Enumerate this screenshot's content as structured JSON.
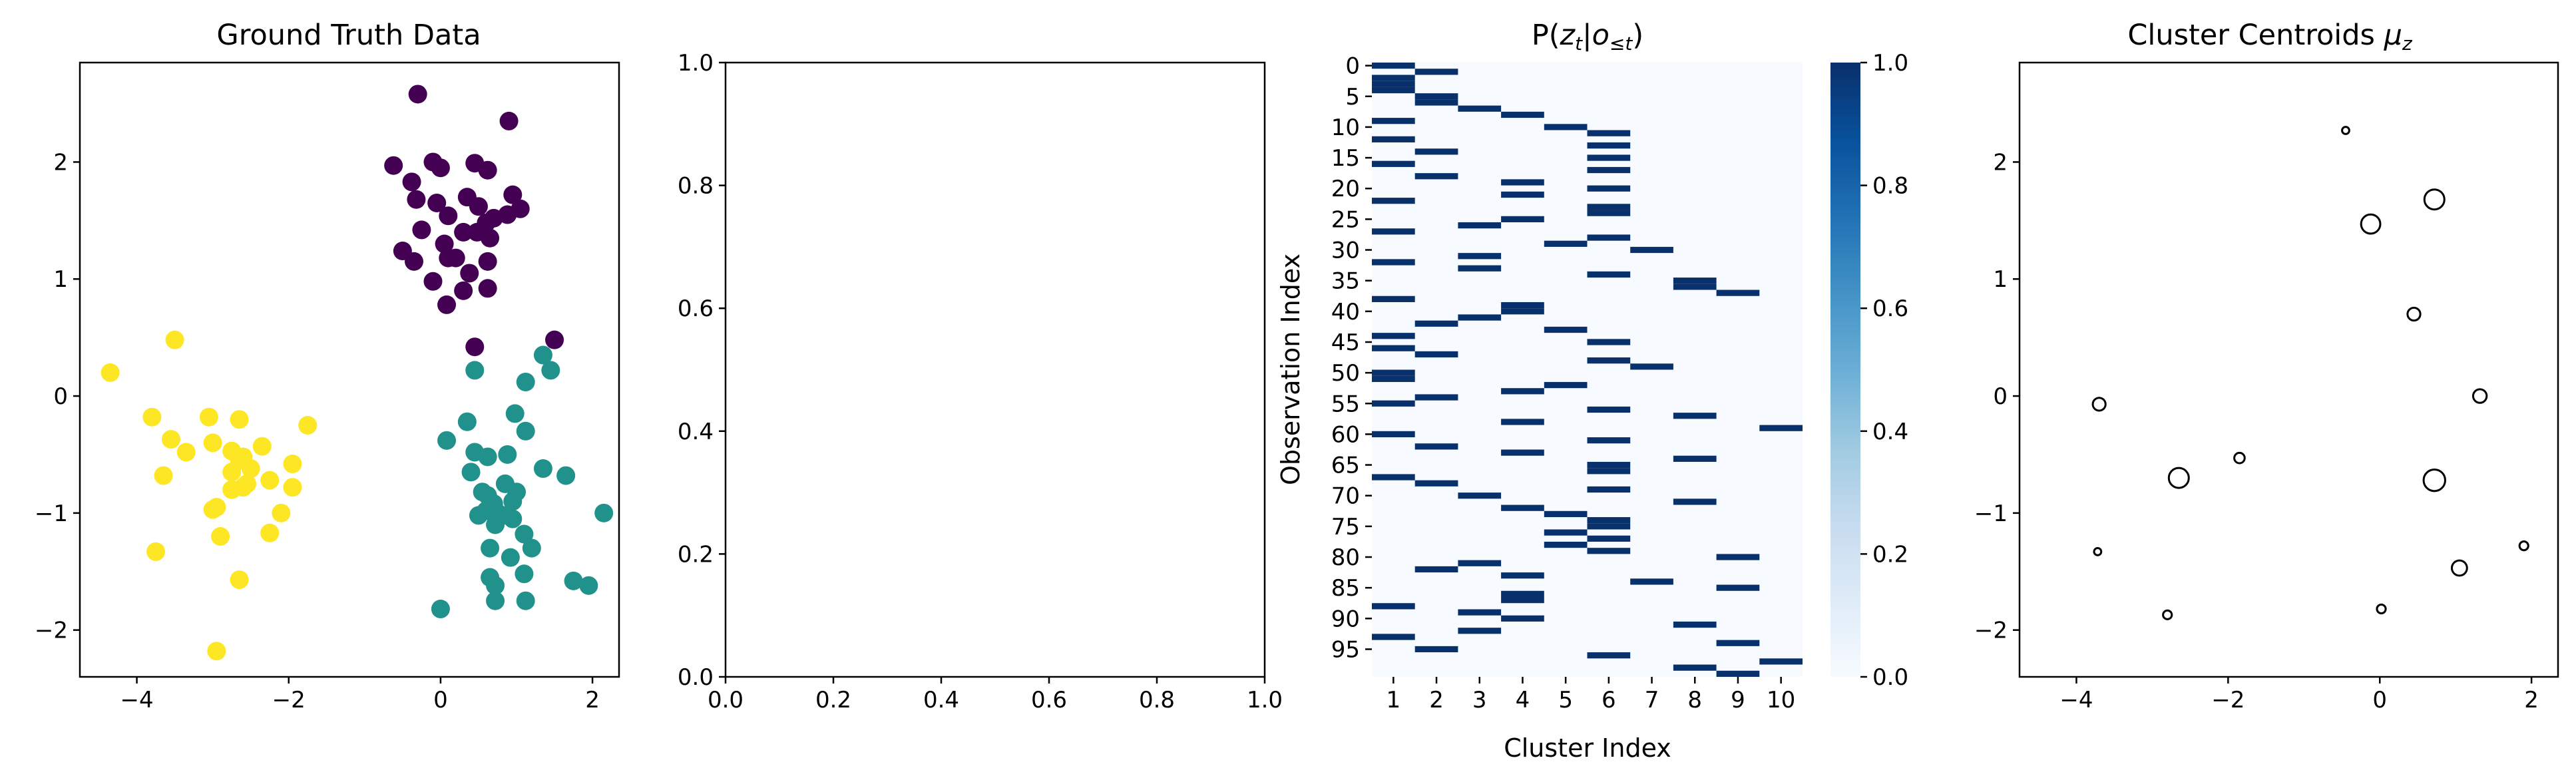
{
  "chart_data": [
    {
      "type": "scatter",
      "title": "Ground Truth Data",
      "xlim": [
        -4.75,
        2.35
      ],
      "ylim": [
        -2.4,
        2.85
      ],
      "xticks": [
        -4,
        -2,
        0,
        2
      ],
      "yticks": [
        -2,
        -1,
        0,
        1,
        2
      ],
      "xtick_labels": [
        "−4",
        "−2",
        "0",
        "2"
      ],
      "ytick_labels": [
        "−2",
        "−1",
        "0",
        "1",
        "2"
      ],
      "series": [
        {
          "color": "#440154",
          "points": [
            [
              -0.3,
              2.58
            ],
            [
              0.9,
              2.35
            ],
            [
              -0.62,
              1.97
            ],
            [
              -0.1,
              2.0
            ],
            [
              0.45,
              1.99
            ],
            [
              0.0,
              1.95
            ],
            [
              0.62,
              1.93
            ],
            [
              -0.38,
              1.83
            ],
            [
              0.95,
              1.72
            ],
            [
              0.35,
              1.7
            ],
            [
              -0.32,
              1.68
            ],
            [
              -0.05,
              1.65
            ],
            [
              0.5,
              1.62
            ],
            [
              1.05,
              1.6
            ],
            [
              0.88,
              1.55
            ],
            [
              0.1,
              1.54
            ],
            [
              0.7,
              1.52
            ],
            [
              0.6,
              1.48
            ],
            [
              -0.25,
              1.42
            ],
            [
              0.3,
              1.4
            ],
            [
              0.48,
              1.4
            ],
            [
              0.65,
              1.35
            ],
            [
              0.05,
              1.3
            ],
            [
              -0.5,
              1.24
            ],
            [
              0.1,
              1.18
            ],
            [
              0.2,
              1.18
            ],
            [
              -0.35,
              1.15
            ],
            [
              0.62,
              1.15
            ],
            [
              0.38,
              1.05
            ],
            [
              -0.1,
              0.98
            ],
            [
              0.62,
              0.92
            ],
            [
              0.3,
              0.9
            ],
            [
              0.08,
              0.78
            ],
            [
              0.45,
              0.42
            ],
            [
              1.5,
              0.48
            ]
          ]
        },
        {
          "color": "#21918c",
          "points": [
            [
              1.35,
              0.35
            ],
            [
              0.45,
              0.22
            ],
            [
              1.45,
              0.22
            ],
            [
              1.12,
              0.12
            ],
            [
              0.98,
              -0.15
            ],
            [
              0.35,
              -0.22
            ],
            [
              1.12,
              -0.3
            ],
            [
              0.08,
              -0.38
            ],
            [
              0.45,
              -0.48
            ],
            [
              0.62,
              -0.52
            ],
            [
              0.88,
              -0.5
            ],
            [
              0.4,
              -0.65
            ],
            [
              1.35,
              -0.62
            ],
            [
              1.65,
              -0.68
            ],
            [
              0.85,
              -0.75
            ],
            [
              0.55,
              -0.82
            ],
            [
              1.0,
              -0.82
            ],
            [
              0.62,
              -0.85
            ],
            [
              0.95,
              -0.9
            ],
            [
              0.7,
              -0.92
            ],
            [
              0.6,
              -0.98
            ],
            [
              0.75,
              -1.0
            ],
            [
              0.5,
              -1.02
            ],
            [
              0.82,
              -1.02
            ],
            [
              0.95,
              -1.05
            ],
            [
              2.15,
              -1.0
            ],
            [
              0.72,
              -1.1
            ],
            [
              1.1,
              -1.18
            ],
            [
              0.65,
              -1.3
            ],
            [
              1.2,
              -1.3
            ],
            [
              0.92,
              -1.38
            ],
            [
              1.1,
              -1.52
            ],
            [
              0.65,
              -1.55
            ],
            [
              0.72,
              -1.62
            ],
            [
              1.75,
              -1.58
            ],
            [
              1.95,
              -1.62
            ],
            [
              0.72,
              -1.75
            ],
            [
              1.12,
              -1.75
            ],
            [
              0.0,
              -1.82
            ]
          ]
        },
        {
          "color": "#fde725",
          "points": [
            [
              -3.5,
              0.48
            ],
            [
              -4.35,
              0.2
            ],
            [
              -3.8,
              -0.18
            ],
            [
              -3.05,
              -0.18
            ],
            [
              -2.65,
              -0.2
            ],
            [
              -1.75,
              -0.25
            ],
            [
              -3.55,
              -0.37
            ],
            [
              -3.0,
              -0.4
            ],
            [
              -2.35,
              -0.43
            ],
            [
              -2.75,
              -0.47
            ],
            [
              -3.35,
              -0.48
            ],
            [
              -2.6,
              -0.52
            ],
            [
              -2.65,
              -0.55
            ],
            [
              -1.95,
              -0.58
            ],
            [
              -2.5,
              -0.62
            ],
            [
              -2.75,
              -0.65
            ],
            [
              -3.65,
              -0.68
            ],
            [
              -2.25,
              -0.72
            ],
            [
              -2.55,
              -0.75
            ],
            [
              -2.6,
              -0.78
            ],
            [
              -2.75,
              -0.8
            ],
            [
              -1.95,
              -0.78
            ],
            [
              -3.0,
              -0.97
            ],
            [
              -2.1,
              -1.0
            ],
            [
              -2.95,
              -0.95
            ],
            [
              -2.25,
              -1.17
            ],
            [
              -2.9,
              -1.2
            ],
            [
              -3.75,
              -1.33
            ],
            [
              -2.65,
              -1.57
            ],
            [
              -2.95,
              -2.18
            ]
          ]
        }
      ]
    },
    {
      "type": "scatter",
      "title": "",
      "xlim": [
        0,
        1
      ],
      "ylim": [
        0,
        1
      ],
      "xticks": [
        0.0,
        0.2,
        0.4,
        0.6,
        0.8,
        1.0
      ],
      "yticks": [
        0.0,
        0.2,
        0.4,
        0.6,
        0.8,
        1.0
      ],
      "xtick_labels": [
        "0.0",
        "0.2",
        "0.4",
        "0.6",
        "0.8",
        "1.0"
      ],
      "ytick_labels": [
        "0.0",
        "0.2",
        "0.4",
        "0.6",
        "0.8",
        "1.0"
      ],
      "series": []
    },
    {
      "type": "heatmap",
      "title": "P(z_t|o_{≤t})",
      "title_parts": [
        "P(",
        "z",
        "t",
        "|",
        "o",
        "≤",
        "t",
        ")"
      ],
      "xlabel": "Cluster Index",
      "ylabel": "Observation Index",
      "n_rows": 100,
      "n_cols": 10,
      "xtick_labels": [
        "1",
        "2",
        "3",
        "4",
        "5",
        "6",
        "7",
        "8",
        "9",
        "10"
      ],
      "ytick_labels": [
        "0",
        "5",
        "10",
        "15",
        "20",
        "25",
        "30",
        "35",
        "40",
        "45",
        "50",
        "55",
        "60",
        "65",
        "70",
        "75",
        "80",
        "85",
        "90",
        "95"
      ],
      "colorbar": {
        "min": 0.0,
        "max": 1.0,
        "ticks": [
          "0.0",
          "0.2",
          "0.4",
          "0.6",
          "0.8",
          "1.0"
        ],
        "low_color": "#f7fbff",
        "high_color": "#08306b",
        "colormap": "Blues"
      },
      "row_assignments": [
        1,
        2,
        1,
        1,
        1,
        2,
        2,
        3,
        4,
        1,
        5,
        6,
        1,
        6,
        2,
        6,
        1,
        6,
        2,
        4,
        6,
        4,
        1,
        6,
        6,
        4,
        3,
        1,
        6,
        5,
        7,
        3,
        1,
        3,
        6,
        8,
        8,
        9,
        1,
        4,
        4,
        3,
        2,
        5,
        1,
        6,
        1,
        2,
        6,
        7,
        1,
        1,
        5,
        4,
        2,
        1,
        6,
        8,
        4,
        10,
        1,
        6,
        2,
        4,
        8,
        6,
        6,
        1,
        2,
        6,
        3,
        8,
        4,
        5,
        6,
        6,
        5,
        6,
        5,
        6,
        9,
        3,
        2,
        4,
        7,
        9,
        4,
        4,
        1,
        3,
        4,
        8,
        3,
        1,
        9,
        2,
        6,
        10,
        8,
        9
      ],
      "value_scale": "one-hot (1.0 at assigned cluster, 0.0 elsewhere)"
    },
    {
      "type": "scatter",
      "title": "Cluster Centroids μ_z",
      "title_text": "Cluster Centroids ",
      "title_symbol": "μ",
      "title_sub": "z",
      "xlim": [
        -4.75,
        2.35
      ],
      "ylim": [
        -2.4,
        2.85
      ],
      "xticks": [
        -4,
        -2,
        0,
        2
      ],
      "yticks": [
        -2,
        -1,
        0,
        1,
        2
      ],
      "xtick_labels": [
        "−4",
        "−2",
        "0",
        "2"
      ],
      "ytick_labels": [
        "−2",
        "−1",
        "0",
        "1",
        "2"
      ],
      "marker": "open circle, size proportional to cluster weight",
      "points": [
        {
          "x": -0.45,
          "y": 2.27,
          "weight": 0.2
        },
        {
          "x": 0.72,
          "y": 1.68,
          "weight": 1.0
        },
        {
          "x": -0.12,
          "y": 1.47,
          "weight": 0.95
        },
        {
          "x": 0.45,
          "y": 0.7,
          "weight": 0.55
        },
        {
          "x": -3.7,
          "y": -0.07,
          "weight": 0.55
        },
        {
          "x": 1.32,
          "y": 0.0,
          "weight": 0.6
        },
        {
          "x": -1.85,
          "y": -0.53,
          "weight": 0.4
        },
        {
          "x": -2.65,
          "y": -0.7,
          "weight": 1.0
        },
        {
          "x": 0.72,
          "y": -0.72,
          "weight": 1.1
        },
        {
          "x": -3.72,
          "y": -1.33,
          "weight": 0.2
        },
        {
          "x": 1.9,
          "y": -1.28,
          "weight": 0.3
        },
        {
          "x": 1.05,
          "y": -1.47,
          "weight": 0.7
        },
        {
          "x": -2.8,
          "y": -1.87,
          "weight": 0.3
        },
        {
          "x": 0.02,
          "y": -1.82,
          "weight": 0.3
        }
      ]
    }
  ]
}
